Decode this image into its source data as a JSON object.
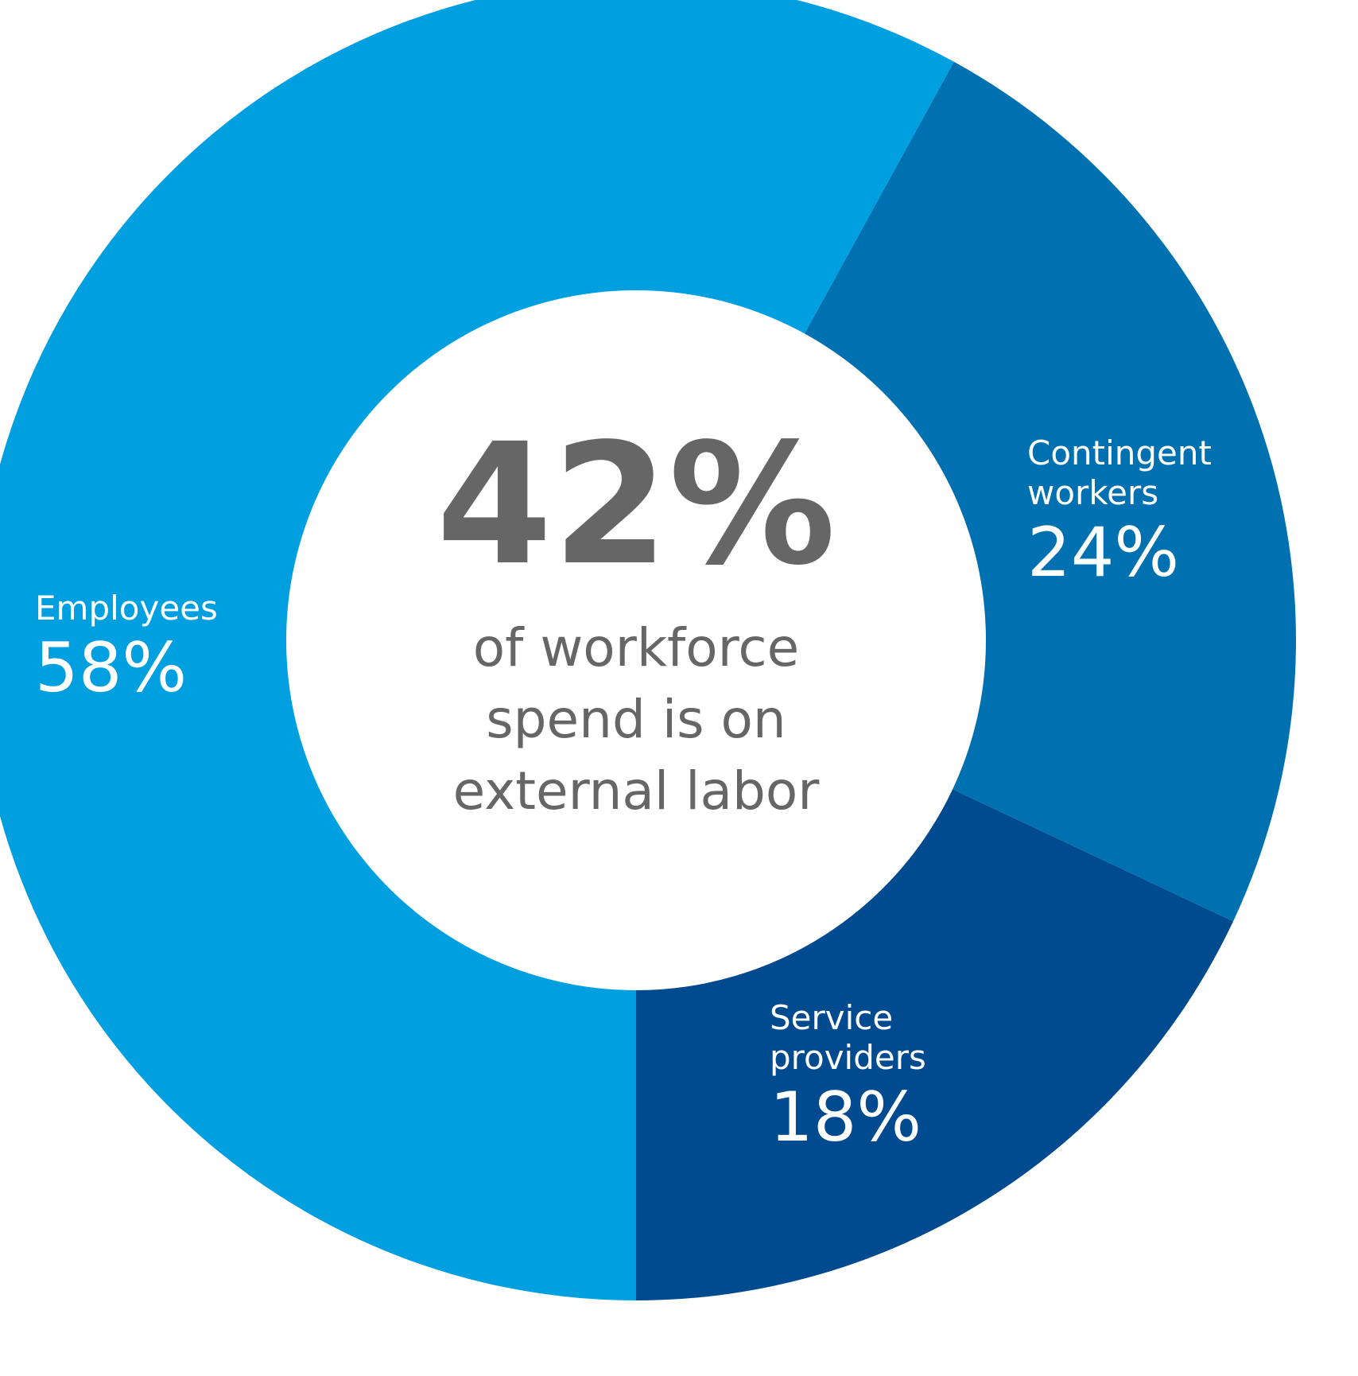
{
  "chart_data": {
    "type": "donut",
    "categories": [
      "Employees",
      "Contingent workers",
      "Service providers"
    ],
    "values": [
      58,
      24,
      18
    ],
    "value_labels": [
      "58%",
      "24%",
      "18%"
    ],
    "colors": [
      "#009fe0",
      "#0071b0",
      "#004a8f"
    ],
    "center_text": "42%",
    "center_caption": "of workforce spend is on external labor"
  }
}
